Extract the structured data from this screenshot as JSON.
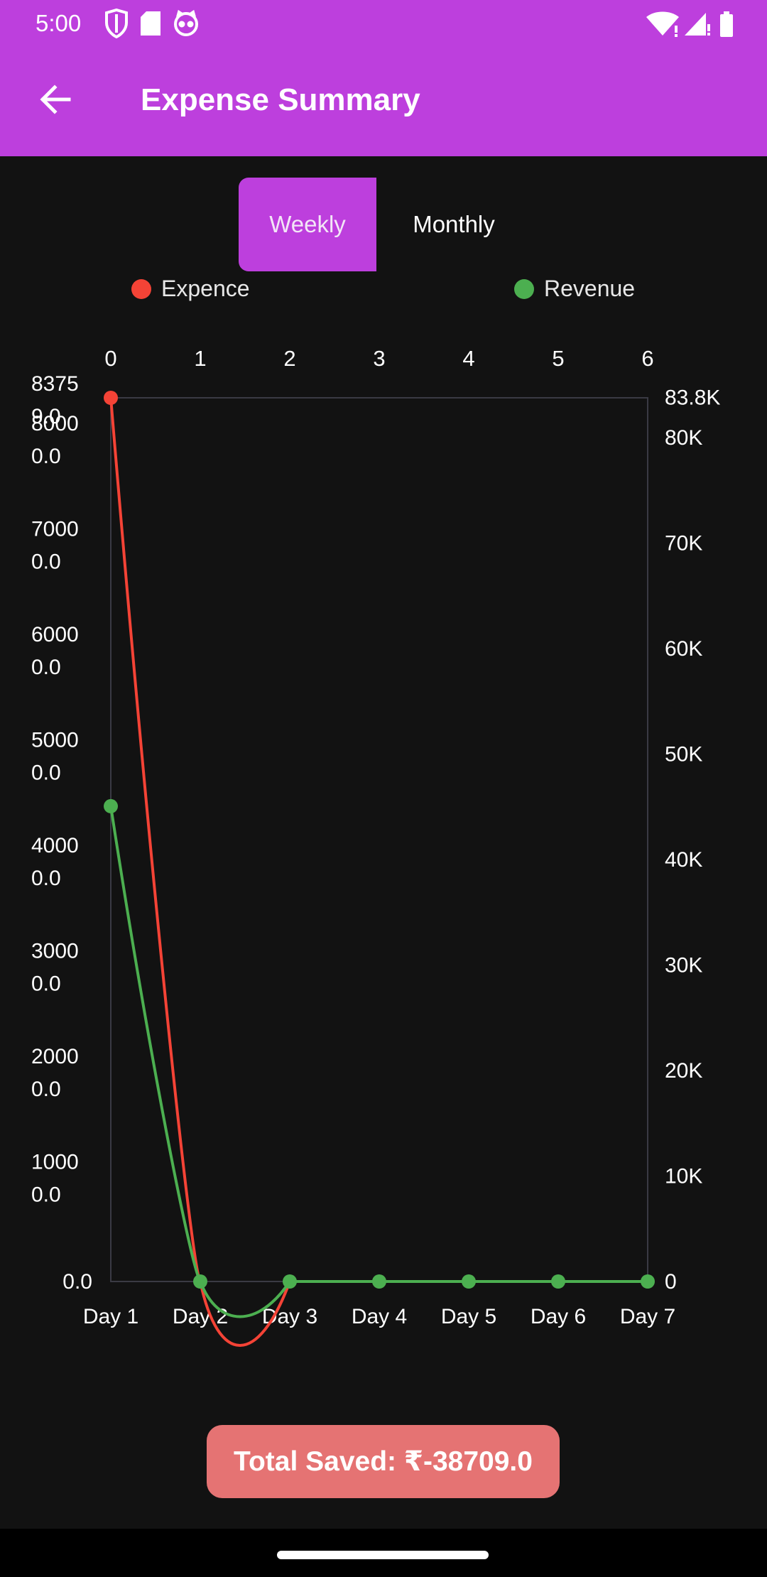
{
  "status_bar": {
    "time": "5:00",
    "left_icons": [
      "shield-icon",
      "sd-card-icon",
      "cat-face-icon"
    ],
    "right_icons": [
      "wifi-icon",
      "signal-icon",
      "battery-icon"
    ]
  },
  "app_bar": {
    "title": "Expense Summary",
    "back_icon": "arrow-left-icon"
  },
  "toggle": {
    "weekly_label": "Weekly",
    "monthly_label": "Monthly",
    "selected": "Weekly"
  },
  "legend": [
    {
      "label": "Expence",
      "color": "#f44336"
    },
    {
      "label": "Revenue",
      "color": "#4caf50"
    }
  ],
  "chart_data": {
    "type": "line",
    "x": [
      0,
      1,
      2,
      3,
      4,
      5,
      6
    ],
    "top_tick_labels": [
      "0",
      "1",
      "2",
      "3",
      "4",
      "5",
      "6"
    ],
    "bottom_tick_labels": [
      "Day 1",
      "Day 2",
      "Day 3",
      "Day 4",
      "Day 5",
      "Day 6",
      "Day 7"
    ],
    "left_tick_labels": [
      "0.0",
      "1000\n0.0",
      "2000\n0.0",
      "3000\n0.0",
      "4000\n0.0",
      "5000\n0.0",
      "6000\n0.0",
      "7000\n0.0",
      "8000\n0.0",
      "8375\n9.0"
    ],
    "left_tick_values": [
      0,
      10000,
      20000,
      30000,
      40000,
      50000,
      60000,
      70000,
      80000,
      83759
    ],
    "right_tick_labels": [
      "0",
      "10K",
      "20K",
      "30K",
      "40K",
      "50K",
      "60K",
      "70K",
      "80K",
      "83.8K"
    ],
    "right_tick_values": [
      0,
      10000,
      20000,
      30000,
      40000,
      50000,
      60000,
      70000,
      80000,
      83800
    ],
    "ylim": [
      0,
      83759
    ],
    "series": [
      {
        "name": "Expence",
        "color": "#f44336",
        "values": [
          83759,
          0,
          0,
          null,
          null,
          null,
          null
        ]
      },
      {
        "name": "Revenue",
        "color": "#4caf50",
        "values": [
          45050,
          0,
          0,
          0,
          0,
          0,
          0
        ]
      }
    ]
  },
  "total_saved": "Total Saved: ₹-38709.0"
}
